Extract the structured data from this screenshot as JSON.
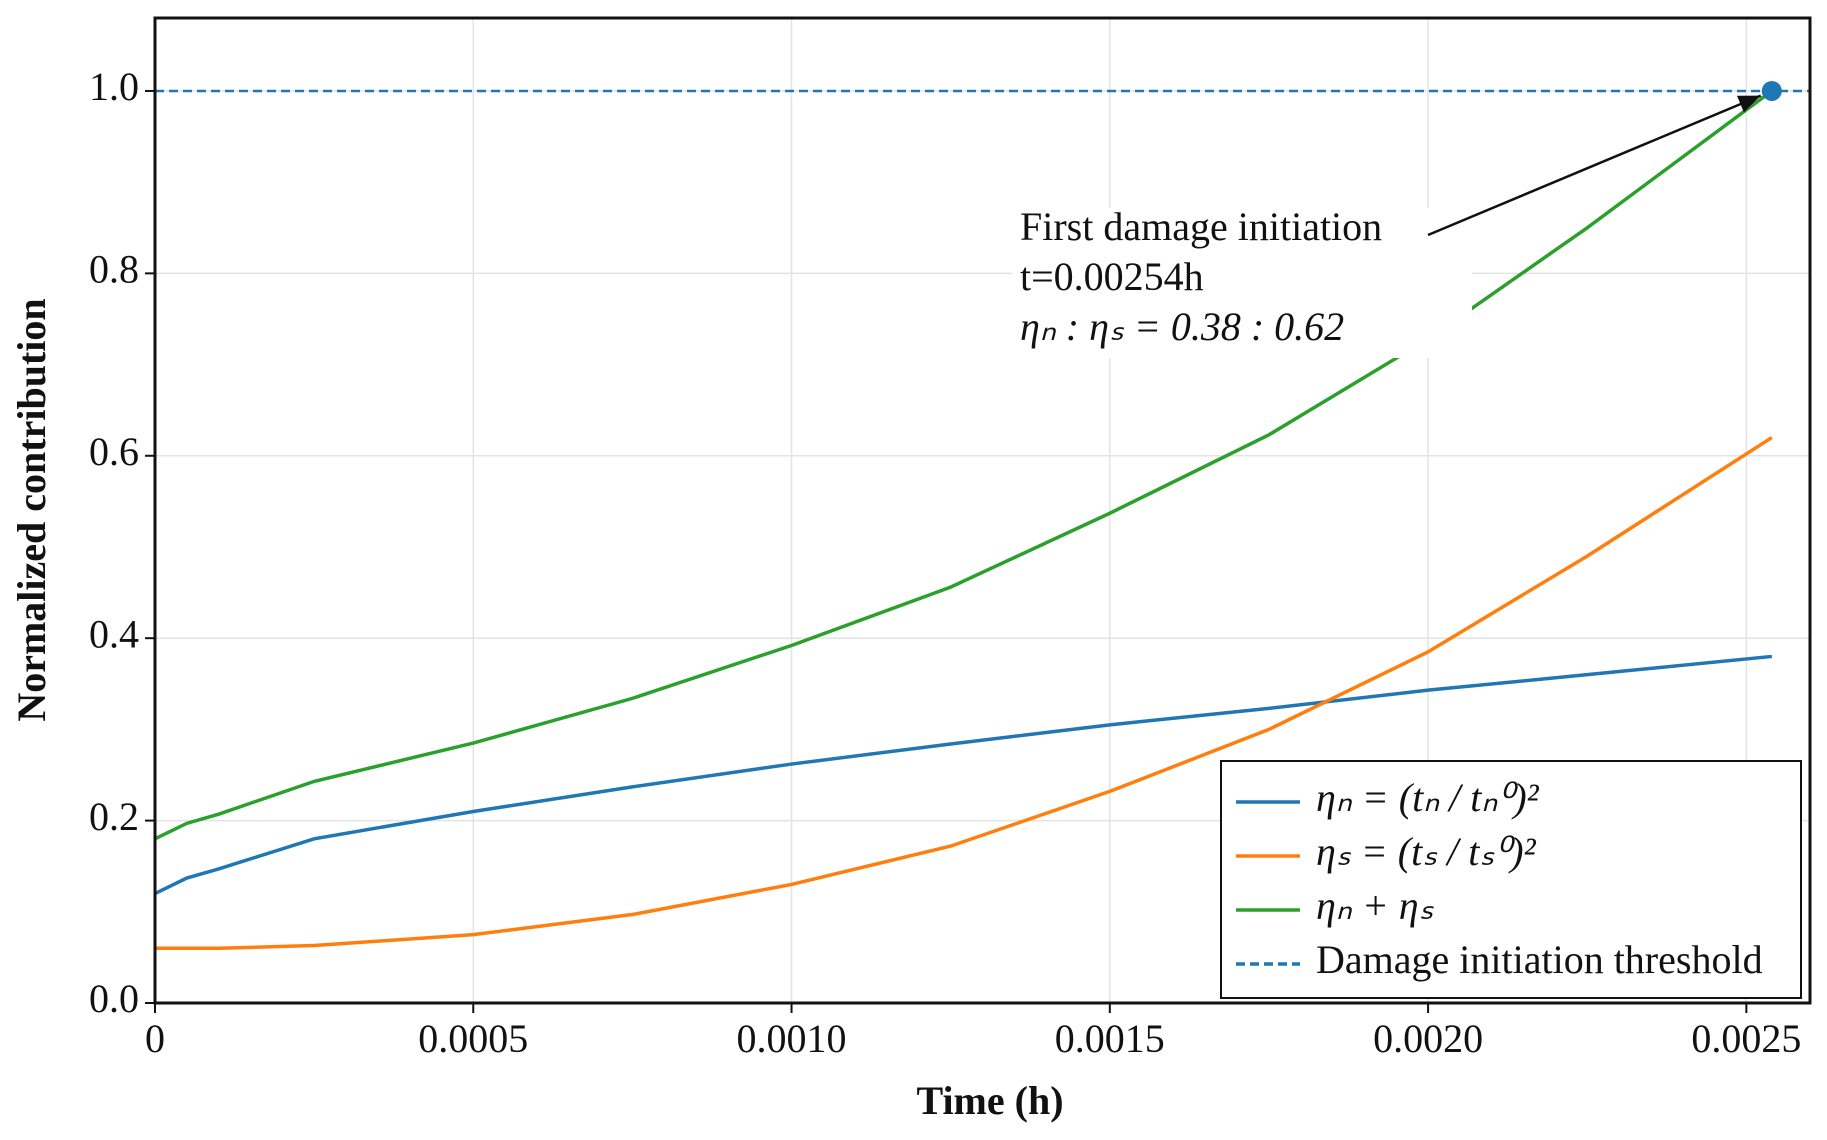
{
  "chart_data": {
    "type": "line",
    "xlabel": "Time (h)",
    "ylabel": "Normalized contribution",
    "xlim": [
      0,
      0.0026
    ],
    "ylim": [
      0,
      1.08
    ],
    "xticks": [
      0,
      {
        "value": 0.0005,
        "label": "0.0005"
      },
      {
        "value": 0.001,
        "label": "0.0010"
      },
      {
        "value": 0.0015,
        "label": "0.0015"
      },
      {
        "value": 0.002,
        "label": "0.0020"
      },
      {
        "value": 0.0025,
        "label": "0.0025"
      }
    ],
    "yticks": [
      {
        "value": 0,
        "label": "0.0"
      },
      {
        "value": 0.2,
        "label": "0.2"
      },
      {
        "value": 0.4,
        "label": "0.4"
      },
      {
        "value": 0.6,
        "label": "0.6"
      },
      {
        "value": 0.8,
        "label": "0.8"
      },
      {
        "value": 1,
        "label": "1.0"
      }
    ],
    "grid": true,
    "legend": "lower right",
    "x": [
      0,
      5e-05,
      0.0001,
      0.00025,
      0.0005,
      0.00075,
      0.001,
      0.00125,
      0.0015,
      0.00175,
      0.002,
      0.00225,
      0.00254
    ],
    "series": [
      {
        "name": "ηₙ = (tₙ / tₙ⁰)²",
        "color": "#1f77b4",
        "values": [
          0.12,
          0.137,
          0.147,
          0.18,
          0.21,
          0.237,
          0.262,
          0.284,
          0.305,
          0.323,
          0.343,
          0.36,
          0.38
        ]
      },
      {
        "name": "ηₛ = (tₛ / tₛ⁰)²",
        "color": "#ff7f0e",
        "values": [
          0.06,
          0.06,
          0.06,
          0.063,
          0.075,
          0.097,
          0.13,
          0.172,
          0.232,
          0.3,
          0.385,
          0.49,
          0.62
        ]
      },
      {
        "name": "ηₙ + ηₛ",
        "color": "#2ca02c",
        "values": [
          0.18,
          0.197,
          0.207,
          0.243,
          0.285,
          0.334,
          0.392,
          0.456,
          0.537,
          0.623,
          0.728,
          0.85,
          1.0
        ]
      }
    ],
    "threshold": {
      "name": "Damage initiation threshold",
      "value": 1.0,
      "color": "#1f77b4"
    },
    "annotation": {
      "lines": [
        "First damage initiation",
        "t=0.00254h",
        "ηₙ : ηₛ = 0.38 : 0.62"
      ],
      "x": 0.00254,
      "y": 1.0
    }
  }
}
